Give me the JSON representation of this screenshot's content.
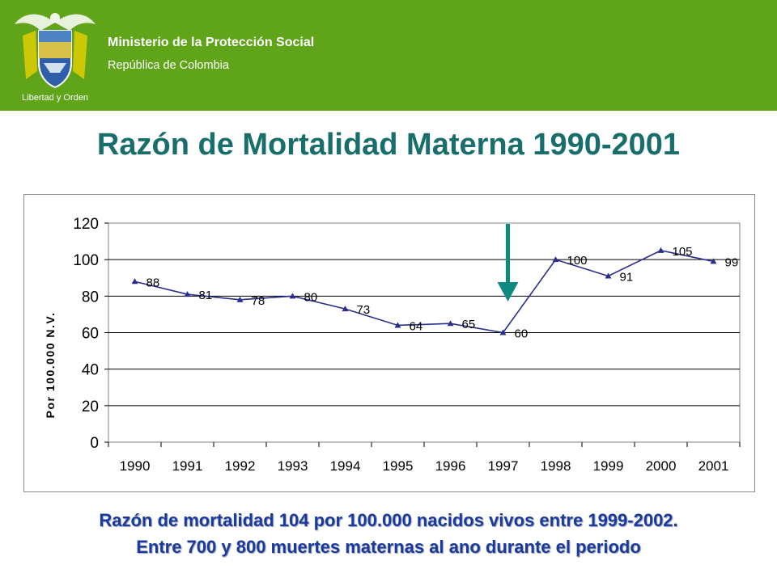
{
  "header": {
    "ministry": "Ministerio de la Protección Social",
    "republic": "República de Colombia",
    "crest_motto": "Libertad y Orden",
    "background_color": "#5fa419"
  },
  "slide": {
    "title": "Razón de Mortalidad Materna 1990-2001",
    "title_color": "#176e6a"
  },
  "chart_data": {
    "type": "line",
    "categories": [
      "1990",
      "1991",
      "1992",
      "1993",
      "1994",
      "1995",
      "1996",
      "1997",
      "1998",
      "1999",
      "2000",
      "2001"
    ],
    "series": [
      {
        "values": [
          88,
          81,
          78,
          80,
          73,
          64,
          65,
          60,
          100,
          91,
          105,
          99
        ],
        "color": "#2b2f8c",
        "marker": "triangle"
      }
    ],
    "data_labels": [
      "88",
      "81",
      "78",
      "80",
      "73",
      "64",
      "65",
      "60",
      "100",
      "91",
      "105",
      "99"
    ],
    "ylabel": "Por 100.000 N.V.",
    "xlabel": "",
    "ylim": [
      0,
      120
    ],
    "yticks": [
      0,
      20,
      40,
      60,
      80,
      100,
      120
    ],
    "grid": true,
    "legend": "none",
    "annotation": {
      "type": "downward-arrow",
      "at_category": "1997",
      "color": "#0f8a7e"
    }
  },
  "footnote": {
    "line1": "Razón de mortalidad 104 por 100.000 nacidos vivos entre 1999-2002.",
    "line2": "Entre 700 y 800 muertes maternas al ano durante el periodo",
    "color": "#1a3a9c"
  }
}
